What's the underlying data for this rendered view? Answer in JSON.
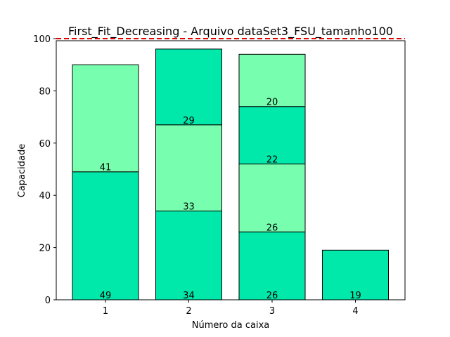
{
  "chart_data": {
    "type": "bar",
    "stacked": true,
    "title": "First_Fit_Decreasing - Arquivo dataSet3_FSU_tamanho100",
    "xlabel": "Número da caixa",
    "ylabel": "Capacidade",
    "categories": [
      "1",
      "2",
      "3",
      "4"
    ],
    "ylim": [
      0,
      100
    ],
    "yticks": [
      0,
      20,
      40,
      60,
      80,
      100
    ],
    "capacity_line": 100,
    "capacity_line_color": "#dd0000",
    "bin_colors": [
      "#00e8aa",
      "#77ffaf"
    ],
    "bins": [
      {
        "items": [
          49,
          41
        ]
      },
      {
        "items": [
          34,
          33,
          29
        ]
      },
      {
        "items": [
          26,
          26,
          22,
          20
        ]
      },
      {
        "items": [
          19
        ]
      }
    ],
    "grid": false,
    "legend": "none"
  }
}
